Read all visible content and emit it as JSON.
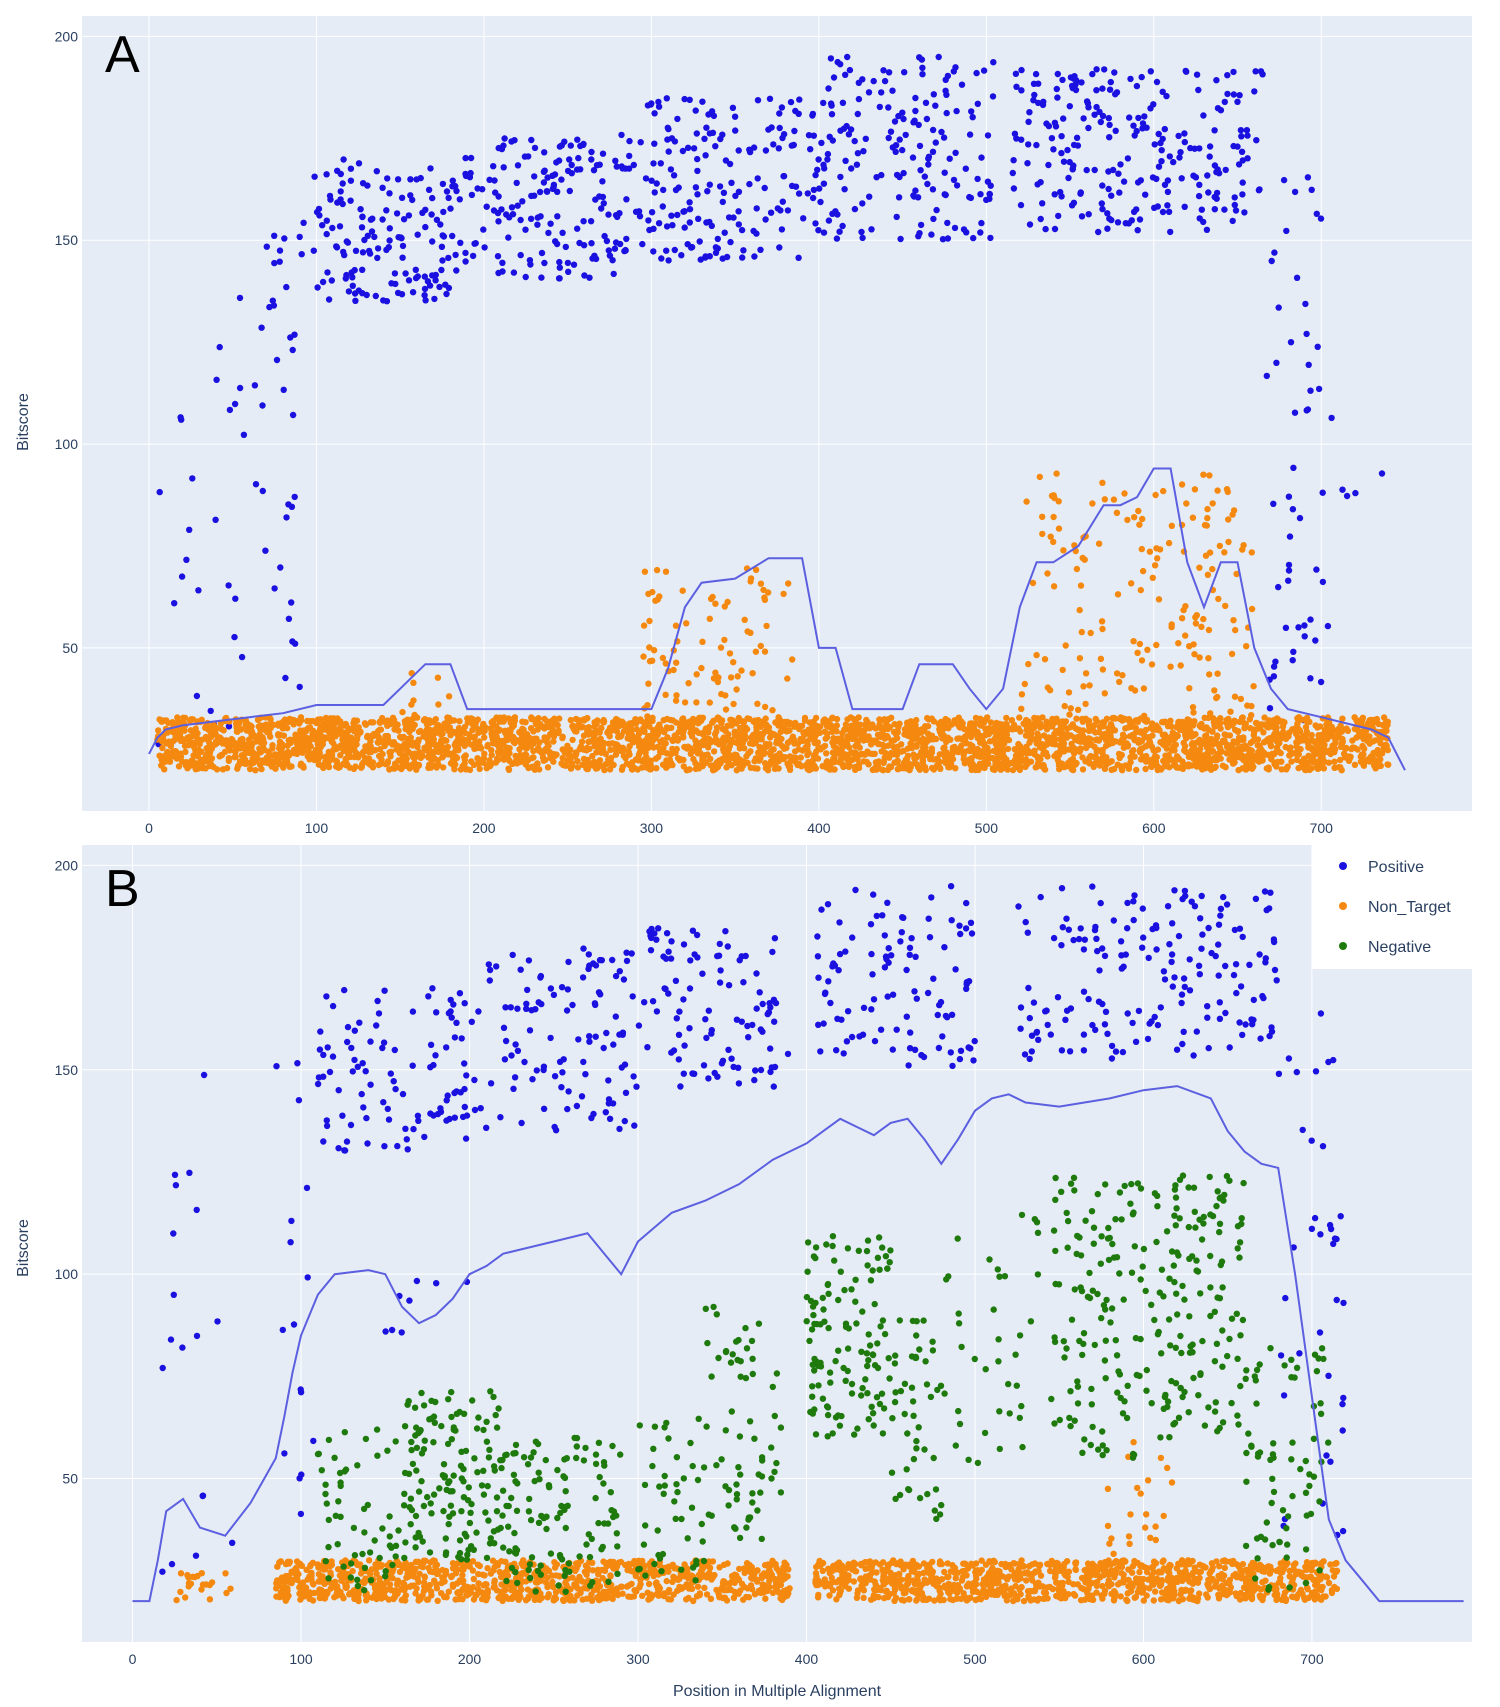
{
  "colors": {
    "positive": "#1a10e0",
    "non_target": "#f5890f",
    "negative": "#1f7a0d",
    "threshold_line": "#5b5fe0",
    "plot_bg": "#e5ecf6",
    "grid": "#ffffff",
    "tick_text": "#2a3f5f"
  },
  "legend": {
    "items": [
      {
        "key": "positive",
        "label": "Positive"
      },
      {
        "key": "non_target",
        "label": "Non_Target"
      },
      {
        "key": "negative",
        "label": "Negative"
      }
    ]
  },
  "chart_data": [
    {
      "panel": "A",
      "type": "scatter",
      "ylabel": "Bitscore",
      "xlabel": "",
      "xlim": [
        -40,
        790
      ],
      "ylim": [
        10,
        205
      ],
      "xticks": [
        0,
        100,
        200,
        300,
        400,
        500,
        600,
        700
      ],
      "yticks": [
        50,
        100,
        150,
        200
      ],
      "series": [
        {
          "key": "positive",
          "name": "Positive",
          "render": "scatter",
          "bands": [
            {
              "x": [
                5,
                40
              ],
              "y": [
                25,
                110
              ],
              "density": 0.25
            },
            {
              "x": [
                40,
                65
              ],
              "y": [
                30,
                140
              ],
              "density": 0.35
            },
            {
              "x": [
                65,
                90
              ],
              "y": [
                40,
                160
              ],
              "density": 0.8
            },
            {
              "x": [
                90,
                180
              ],
              "y": [
                135,
                170
              ],
              "density": 1
            },
            {
              "x": [
                180,
                280
              ],
              "y": [
                140,
                175
              ],
              "density": 1
            },
            {
              "x": [
                280,
                390
              ],
              "y": [
                145,
                185
              ],
              "density": 1
            },
            {
              "x": [
                390,
                505
              ],
              "y": [
                150,
                195
              ],
              "density": 1
            },
            {
              "x": [
                515,
                665
              ],
              "y": [
                152,
                192
              ],
              "density": 1
            },
            {
              "x": [
                665,
                700
              ],
              "y": [
                30,
                170
              ],
              "density": 0.9
            },
            {
              "x": [
                700,
                745
              ],
              "y": [
                25,
                110
              ],
              "density": 0.12
            }
          ]
        },
        {
          "key": "non_target",
          "name": "Non_Target",
          "render": "scatter",
          "bands": [
            {
              "x": [
                5,
                740
              ],
              "y": [
                20,
                33
              ],
              "density": 3
            },
            {
              "x": [
                150,
                180
              ],
              "y": [
                30,
                45
              ],
              "density": 0.2
            },
            {
              "x": [
                295,
                390
              ],
              "y": [
                30,
                70
              ],
              "density": 0.6
            },
            {
              "x": [
                520,
                660
              ],
              "y": [
                30,
                93
              ],
              "density": 0.8
            }
          ]
        },
        {
          "key": "threshold_line",
          "name": "",
          "render": "line",
          "x": [
            0,
            5,
            10,
            20,
            40,
            60,
            80,
            100,
            140,
            150,
            165,
            180,
            190,
            300,
            310,
            320,
            330,
            350,
            370,
            390,
            400,
            410,
            420,
            450,
            460,
            480,
            490,
            500,
            510,
            520,
            530,
            540,
            555,
            570,
            580,
            590,
            600,
            610,
            620,
            630,
            640,
            650,
            660,
            670,
            680,
            700,
            730,
            740,
            750
          ],
          "y": [
            24,
            28,
            30,
            31,
            32,
            33,
            34,
            36,
            36,
            40,
            46,
            46,
            35,
            35,
            45,
            60,
            66,
            67,
            72,
            72,
            50,
            50,
            35,
            35,
            46,
            46,
            40,
            35,
            40,
            60,
            71,
            71,
            75,
            85,
            85,
            87,
            94,
            94,
            71,
            60,
            71,
            71,
            50,
            40,
            35,
            33,
            30,
            28,
            20
          ]
        }
      ]
    },
    {
      "panel": "B",
      "type": "scatter",
      "ylabel": "Bitscore",
      "xlabel": "Position in Multiple Alignment",
      "xlim": [
        -30,
        795
      ],
      "ylim": [
        10,
        205
      ],
      "xticks": [
        0,
        100,
        200,
        300,
        400,
        500,
        600,
        700
      ],
      "yticks": [
        50,
        100,
        150,
        200
      ],
      "series": [
        {
          "key": "positive",
          "name": "Positive",
          "render": "scatter",
          "bands": [
            {
              "x": [
                15,
                60
              ],
              "y": [
                25,
                160
              ],
              "density": 0.25
            },
            {
              "x": [
                85,
                110
              ],
              "y": [
                40,
                160
              ],
              "density": 0.4
            },
            {
              "x": [
                110,
                200
              ],
              "y": [
                130,
                170
              ],
              "density": 0.7
            },
            {
              "x": [
                150,
                200
              ],
              "y": [
                85,
                100
              ],
              "density": 0.1
            },
            {
              "x": [
                200,
                300
              ],
              "y": [
                135,
                180
              ],
              "density": 0.7
            },
            {
              "x": [
                300,
                390
              ],
              "y": [
                145,
                185
              ],
              "density": 0.7
            },
            {
              "x": [
                405,
                500
              ],
              "y": [
                150,
                195
              ],
              "density": 0.7
            },
            {
              "x": [
                525,
                680
              ],
              "y": [
                152,
                195
              ],
              "density": 0.7
            },
            {
              "x": [
                680,
                720
              ],
              "y": [
                30,
                165
              ],
              "density": 0.6
            }
          ]
        },
        {
          "key": "non_target",
          "name": "Non_Target",
          "render": "scatter",
          "bands": [
            {
              "x": [
                25,
                60
              ],
              "y": [
                20,
                28
              ],
              "density": 0.4
            },
            {
              "x": [
                85,
                390
              ],
              "y": [
                20,
                30
              ],
              "density": 2
            },
            {
              "x": [
                405,
                715
              ],
              "y": [
                20,
                30
              ],
              "density": 2
            },
            {
              "x": [
                575,
                620
              ],
              "y": [
                30,
                60
              ],
              "density": 0.3
            }
          ]
        },
        {
          "key": "negative",
          "name": "Negative",
          "render": "scatter",
          "bands": [
            {
              "x": [
                110,
                160
              ],
              "y": [
                22,
                62
              ],
              "density": 0.7
            },
            {
              "x": [
                160,
                220
              ],
              "y": [
                30,
                72
              ],
              "density": 1.5
            },
            {
              "x": [
                220,
                290
              ],
              "y": [
                22,
                60
              ],
              "density": 1
            },
            {
              "x": [
                300,
                340
              ],
              "y": [
                25,
                65
              ],
              "density": 0.7
            },
            {
              "x": [
                340,
                385
              ],
              "y": [
                35,
                92
              ],
              "density": 0.9
            },
            {
              "x": [
                400,
                450
              ],
              "y": [
                60,
                110
              ],
              "density": 1.5
            },
            {
              "x": [
                450,
                480
              ],
              "y": [
                40,
                90
              ],
              "density": 1
            },
            {
              "x": [
                480,
                540
              ],
              "y": [
                50,
                115
              ],
              "density": 0.4
            },
            {
              "x": [
                545,
                600
              ],
              "y": [
                55,
                125
              ],
              "density": 1.3
            },
            {
              "x": [
                600,
                660
              ],
              "y": [
                60,
                125
              ],
              "density": 1.4
            },
            {
              "x": [
                660,
                710
              ],
              "y": [
                22,
                85
              ],
              "density": 0.9
            }
          ]
        },
        {
          "key": "threshold_line",
          "name": "",
          "render": "line",
          "x": [
            0,
            10,
            15,
            20,
            30,
            40,
            55,
            70,
            85,
            90,
            95,
            100,
            110,
            120,
            140,
            150,
            160,
            170,
            180,
            190,
            200,
            210,
            220,
            230,
            250,
            270,
            280,
            290,
            300,
            320,
            340,
            360,
            380,
            400,
            410,
            420,
            430,
            440,
            450,
            460,
            470,
            480,
            490,
            500,
            510,
            520,
            530,
            550,
            580,
            600,
            620,
            640,
            650,
            660,
            670,
            680,
            690,
            700,
            710,
            720,
            730,
            740,
            790
          ],
          "y": [
            20,
            20,
            30,
            42,
            45,
            38,
            36,
            44,
            55,
            65,
            76,
            85,
            95,
            100,
            101,
            100,
            92,
            88,
            90,
            94,
            100,
            102,
            105,
            106,
            108,
            110,
            105,
            100,
            108,
            115,
            118,
            122,
            128,
            132,
            135,
            138,
            136,
            134,
            137,
            138,
            133,
            127,
            133,
            140,
            143,
            144,
            142,
            141,
            143,
            145,
            146,
            143,
            135,
            130,
            127,
            126,
            100,
            70,
            40,
            30,
            25,
            20,
            20
          ]
        }
      ]
    }
  ]
}
